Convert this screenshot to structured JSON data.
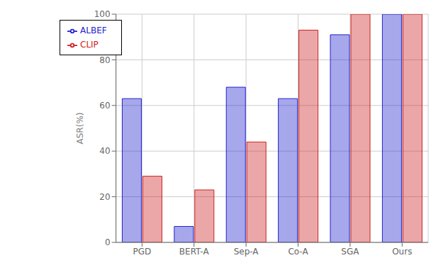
{
  "chart_data": {
    "type": "bar",
    "categories": [
      "PGD",
      "BERT-A",
      "Sep-A",
      "Co-A",
      "SGA",
      "Ours"
    ],
    "series": [
      {
        "name": "ALBEF",
        "color": "#2222cc",
        "values": [
          63,
          7,
          68,
          63,
          91,
          100
        ]
      },
      {
        "name": "CLIP",
        "color": "#cc2222",
        "values": [
          29,
          23,
          44,
          93,
          100,
          100
        ]
      }
    ],
    "ylabel": "ASR(%)",
    "ylim": [
      0,
      100
    ],
    "yticks": [
      0,
      20,
      40,
      60,
      80,
      100
    ],
    "grid": true,
    "legend": "upper left"
  }
}
